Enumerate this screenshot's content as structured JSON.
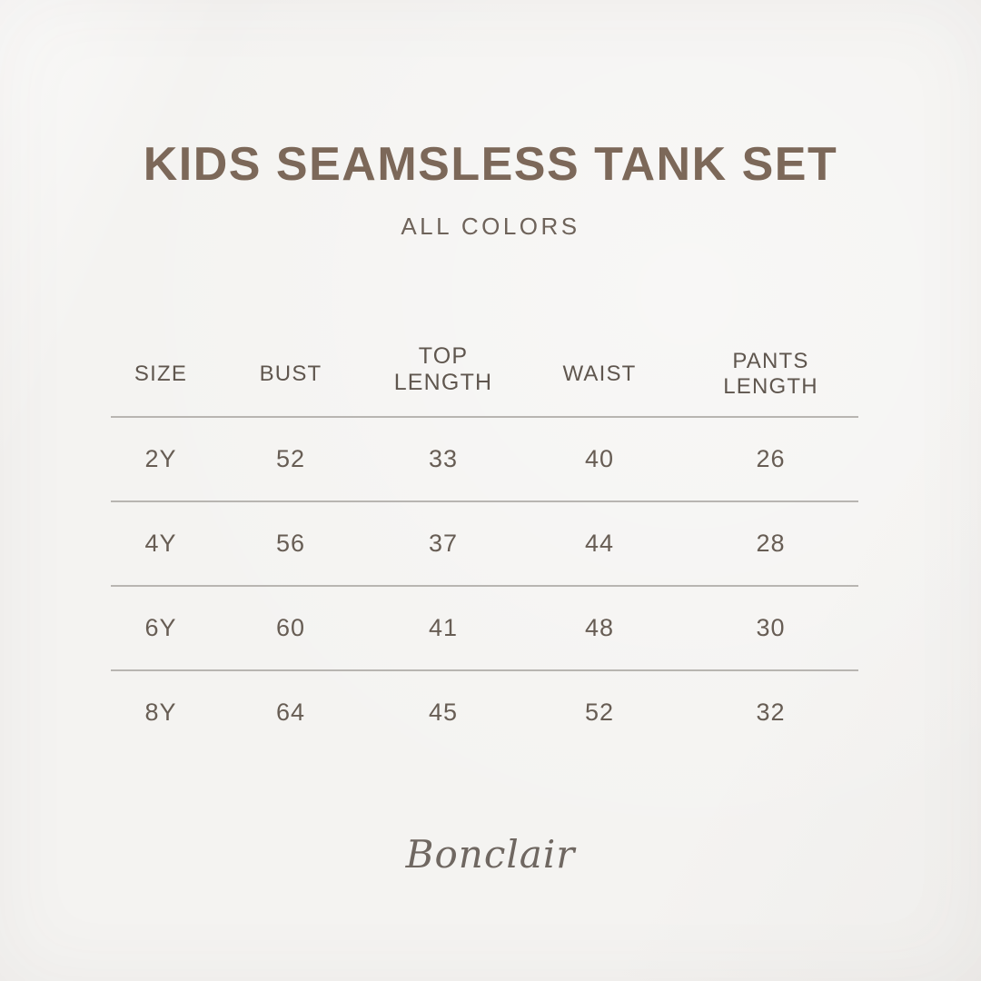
{
  "header": {
    "title": "KIDS SEAMSLESS TANK SET",
    "subtitle": "ALL COLORS"
  },
  "size_chart": {
    "columns": [
      "SIZE",
      "BUST",
      "TOP LENGTH",
      "WAIST",
      "PANTS LENGTH"
    ],
    "rows": [
      [
        "2Y",
        "52",
        "33",
        "40",
        "26"
      ],
      [
        "4Y",
        "56",
        "37",
        "44",
        "28"
      ],
      [
        "6Y",
        "60",
        "41",
        "48",
        "30"
      ],
      [
        "8Y",
        "64",
        "45",
        "52",
        "32"
      ]
    ]
  },
  "footer": {
    "brand": "Bonclair"
  },
  "colors": {
    "background": "#f4f3f1",
    "title_text": "#7c6859",
    "subtitle_text": "#6e635a",
    "header_text": "#5f564e",
    "cell_text": "#675d54",
    "divider": "#b8b5b1",
    "brand_text": "#6f6761"
  }
}
